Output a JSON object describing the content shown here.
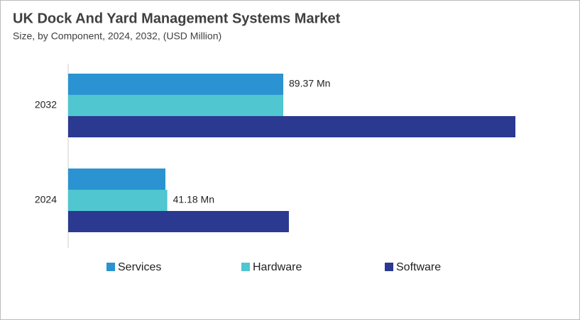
{
  "chart_data": {
    "type": "hbar",
    "title": "UK Dock And Yard Management Systems Market",
    "subtitle": "Size, by Component, 2024, 2032, (USD Million)",
    "categories": [
      "2032",
      "2024"
    ],
    "series": [
      {
        "name": "Services",
        "color": "#2b93d1",
        "values": [
          89.37,
          40.4
        ],
        "value_labels": [
          "89.37 Mn",
          null
        ]
      },
      {
        "name": "Hardware",
        "color": "#4fc6d0",
        "values": [
          89.37,
          41.18
        ],
        "value_labels": [
          null,
          "41.18 Mn"
        ]
      },
      {
        "name": "Software",
        "color": "#2b3990",
        "values": [
          185.8,
          91.7
        ]
      }
    ]
  }
}
